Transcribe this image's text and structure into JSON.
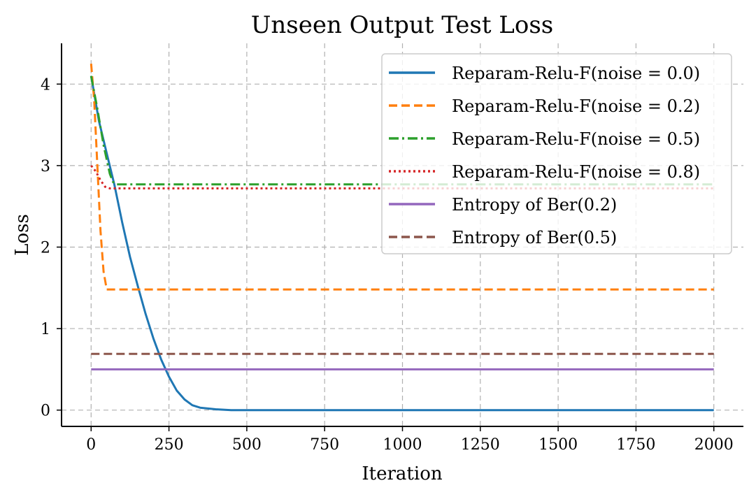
{
  "chart_data": {
    "type": "line",
    "title": "Unseen Output Test Loss",
    "xlabel": "Iteration",
    "ylabel": "Loss",
    "xlim": [
      -95,
      2095
    ],
    "ylim": [
      -0.2,
      4.5
    ],
    "xticks": [
      0,
      250,
      500,
      750,
      1000,
      1250,
      1500,
      1750,
      2000
    ],
    "yticks": [
      0,
      1,
      2,
      3,
      4
    ],
    "grid": true,
    "legend_position": "top-right",
    "series": [
      {
        "name": "Reparam-Relu-F(noise = 0.0)",
        "color": "#1f77b4",
        "dash": "solid",
        "x": [
          0,
          25,
          50,
          75,
          100,
          125,
          150,
          175,
          200,
          225,
          250,
          275,
          300,
          325,
          350,
          400,
          450,
          500,
          750,
          1000,
          1500,
          2000
        ],
        "y": [
          4.1,
          3.55,
          3.15,
          2.76,
          2.3,
          1.88,
          1.52,
          1.18,
          0.88,
          0.62,
          0.41,
          0.24,
          0.13,
          0.06,
          0.03,
          0.01,
          0.0,
          0.0,
          0.0,
          0.0,
          0.0,
          0.0
        ]
      },
      {
        "name": "Reparam-Relu-F(noise = 0.2)",
        "color": "#ff7f0e",
        "dash": "dashed",
        "x": [
          0,
          10,
          20,
          30,
          40,
          50,
          100,
          500,
          1000,
          1500,
          2000
        ],
        "y": [
          4.25,
          3.8,
          3.0,
          2.2,
          1.7,
          1.48,
          1.48,
          1.48,
          1.48,
          1.48,
          1.48
        ]
      },
      {
        "name": "Reparam-Relu-F(noise = 0.5)",
        "color": "#2ca02c",
        "dash": "dashdot",
        "x": [
          0,
          20,
          40,
          60,
          70,
          80,
          500,
          1000,
          1500,
          2000
        ],
        "y": [
          4.1,
          3.7,
          3.25,
          2.9,
          2.8,
          2.77,
          2.77,
          2.77,
          2.77,
          2.77
        ]
      },
      {
        "name": "Reparam-Relu-F(noise = 0.8)",
        "color": "#d62728",
        "dash": "dotted",
        "x": [
          0,
          15,
          30,
          45,
          60,
          80,
          500,
          1000,
          1500,
          2000
        ],
        "y": [
          3.0,
          2.93,
          2.82,
          2.74,
          2.72,
          2.72,
          2.72,
          2.72,
          2.72,
          2.72
        ]
      },
      {
        "name": "Entropy of Ber(0.2)",
        "color": "#9467bd",
        "dash": "solid",
        "x": [
          0,
          2000
        ],
        "y": [
          0.5,
          0.5
        ]
      },
      {
        "name": "Entropy of Ber(0.5)",
        "color": "#8c564b",
        "dash": "dashed",
        "x": [
          0,
          2000
        ],
        "y": [
          0.69,
          0.69
        ]
      }
    ]
  }
}
